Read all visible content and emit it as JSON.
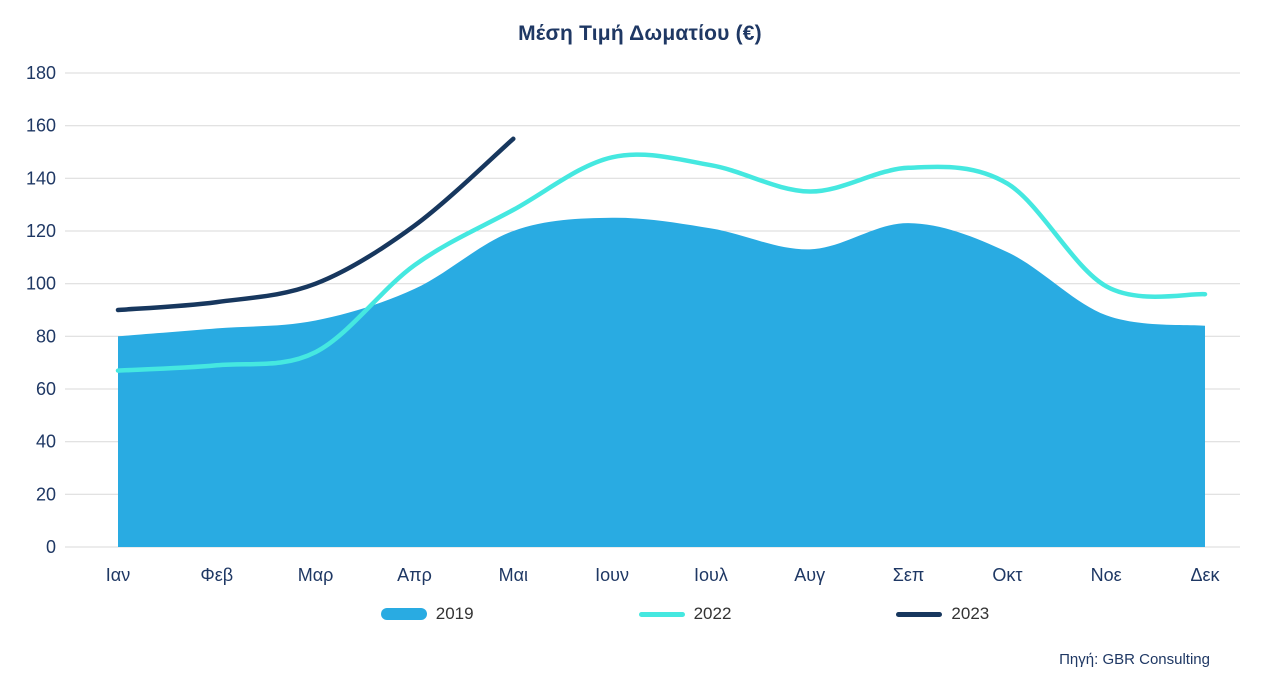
{
  "title": "Μέση Τιμή Δωματίου (€)",
  "source": "Πηγή: GBR Consulting",
  "colors": {
    "text": "#1F3864",
    "grid": "#D9D9D9",
    "area2019": "#29ABE2",
    "line2022": "#45E8E0",
    "line2023": "#17375E"
  },
  "chart_data": {
    "type": "area",
    "title": "Μέση Τιμή Δωματίου (€)",
    "xlabel": "",
    "ylabel": "",
    "ylim": [
      0,
      180
    ],
    "y_ticks": [
      0,
      20,
      40,
      60,
      80,
      100,
      120,
      140,
      160,
      180
    ],
    "grid": true,
    "legend_position": "bottom",
    "categories": [
      "Ιαν",
      "Φεβ",
      "Μαρ",
      "Απρ",
      "Μαι",
      "Ιουν",
      "Ιουλ",
      "Αυγ",
      "Σεπ",
      "Οκτ",
      "Νοε",
      "Δεκ"
    ],
    "series": [
      {
        "name": "2019",
        "type": "area",
        "color": "#29ABE2",
        "values": [
          80,
          83,
          86,
          98,
          120,
          125,
          121,
          113,
          123,
          112,
          88,
          84
        ]
      },
      {
        "name": "2022",
        "type": "line",
        "color": "#45E8E0",
        "values": [
          67,
          69,
          74,
          107,
          128,
          148,
          145,
          135,
          144,
          138,
          99,
          96
        ]
      },
      {
        "name": "2023",
        "type": "line",
        "color": "#17375E",
        "values": [
          90,
          93,
          100,
          122,
          155,
          null,
          null,
          null,
          null,
          null,
          null,
          null
        ]
      }
    ]
  }
}
